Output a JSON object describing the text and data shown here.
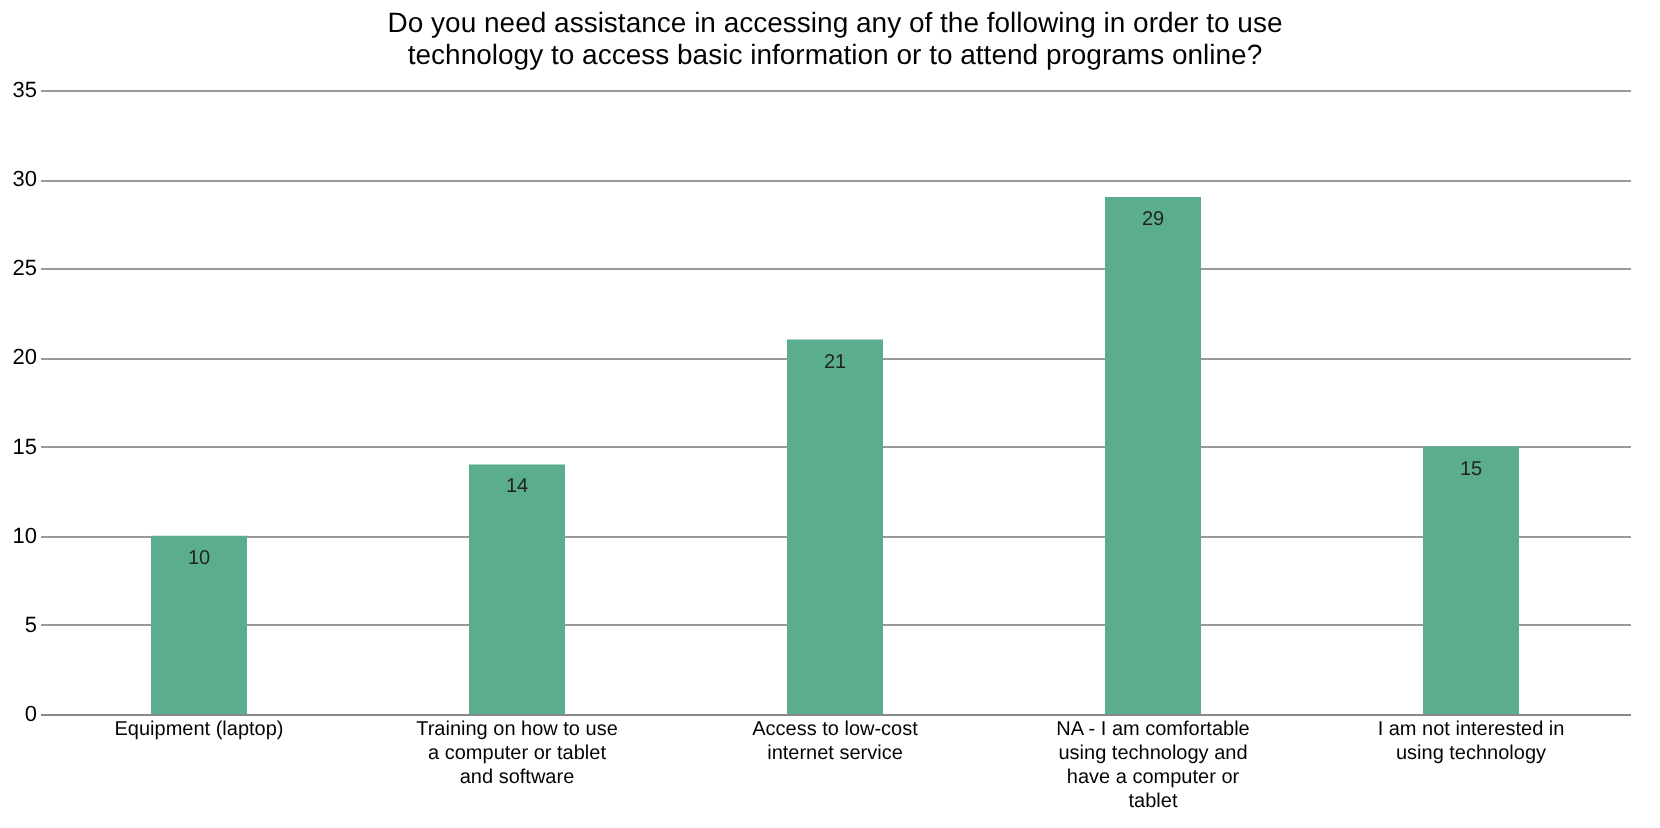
{
  "chart_data": {
    "type": "bar",
    "title": "Do you need assistance in accessing any of the following in order to use\ntechnology to access basic information or to attend programs online?",
    "categories": [
      "Equipment (laptop)",
      "Training on how to use\na computer or tablet\nand software",
      "Access to low-cost\ninternet service",
      "NA - I am comfortable\nusing technology and\nhave a computer or\ntablet",
      "I am not interested in\nusing technology"
    ],
    "values": [
      10,
      14,
      21,
      29,
      15
    ],
    "color": "#5aae8e",
    "ylim": [
      0,
      35
    ],
    "yticks": [
      0,
      5,
      10,
      15,
      20,
      25,
      30,
      35
    ],
    "grid": "y",
    "data_labels": true
  }
}
